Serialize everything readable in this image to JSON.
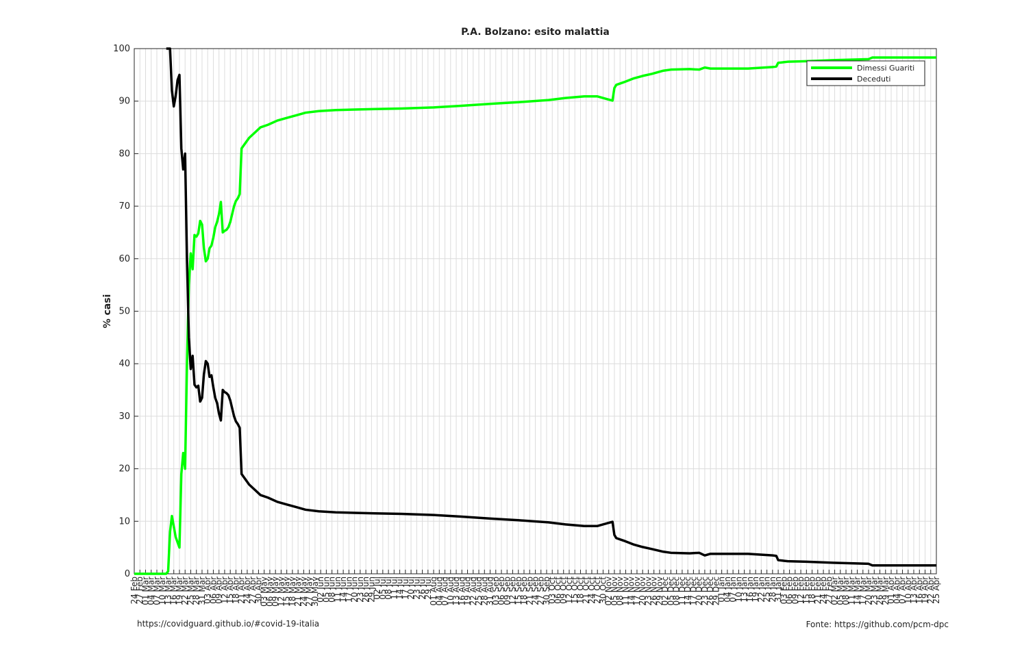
{
  "chart_data": {
    "type": "line",
    "title": "P.A. Bolzano: esito malattia",
    "xlabel": "",
    "ylabel": "% casi",
    "ylim": [
      0,
      100
    ],
    "yticks": [
      0,
      10,
      20,
      30,
      40,
      50,
      60,
      70,
      80,
      90,
      100
    ],
    "xlim": [
      "2020-02-24",
      "2021-04-25"
    ],
    "grid": true,
    "legend_position": "top-right",
    "xtick_labels": [
      "24 Feb",
      "27 Feb",
      "01 Mar",
      "04 Mar",
      "07 Mar",
      "10 Mar",
      "13 Mar",
      "16 Mar",
      "19 Mar",
      "22 Mar",
      "25 Mar",
      "28 Mar",
      "31 Mar",
      "03 Apr",
      "06 Apr",
      "09 Apr",
      "12 Apr",
      "15 Apr",
      "18 Apr",
      "21 Apr",
      "24 Apr",
      "27 Apr",
      "30 Apr",
      "03 May",
      "06 May",
      "09 May",
      "12 May",
      "15 May",
      "18 May",
      "21 May",
      "24 May",
      "27 May",
      "30 May",
      "02 Jun",
      "05 Jun",
      "08 Jun",
      "11 Jun",
      "14 Jun",
      "17 Jun",
      "20 Jun",
      "23 Jun",
      "26 Jun",
      "29 Jun",
      "02 Jul",
      "05 Jul",
      "08 Jul",
      "11 Jul",
      "14 Jul",
      "17 Jul",
      "20 Jul",
      "23 Jul",
      "26 Jul",
      "29 Jul",
      "01 Aug",
      "04 Aug",
      "07 Aug",
      "10 Aug",
      "13 Aug",
      "16 Aug",
      "19 Aug",
      "22 Aug",
      "25 Aug",
      "28 Aug",
      "31 Aug",
      "03 Sep",
      "06 Sep",
      "09 Sep",
      "12 Sep",
      "15 Sep",
      "18 Sep",
      "21 Sep",
      "24 Sep",
      "27 Sep",
      "30 Sep",
      "03 Oct",
      "06 Oct",
      "09 Oct",
      "12 Oct",
      "15 Oct",
      "18 Oct",
      "21 Oct",
      "24 Oct",
      "27 Oct",
      "30 Oct",
      "02 Nov",
      "05 Nov",
      "08 Nov",
      "11 Nov",
      "14 Nov",
      "17 Nov",
      "20 Nov",
      "23 Nov",
      "26 Nov",
      "29 Nov",
      "02 Dec",
      "05 Dec",
      "08 Dec",
      "11 Dec",
      "14 Dec",
      "17 Dec",
      "20 Dec",
      "23 Dec",
      "26 Dec",
      "29 Dec",
      "01 Jan",
      "04 Jan",
      "07 Jan",
      "10 Jan",
      "13 Jan",
      "16 Jan",
      "19 Jan",
      "22 Jan",
      "25 Jan",
      "28 Jan",
      "31 Jan",
      "03 Feb",
      "06 Feb",
      "09 Feb",
      "12 Feb",
      "15 Feb",
      "18 Feb",
      "21 Feb",
      "24 Feb",
      "27 Feb",
      "02 Mar",
      "05 Mar",
      "08 Mar",
      "11 Mar",
      "14 Mar",
      "17 Mar",
      "20 Mar",
      "23 Mar",
      "26 Mar",
      "29 Mar",
      "01 Apr",
      "04 Apr",
      "07 Apr",
      "10 Apr",
      "13 Apr",
      "16 Apr",
      "19 Apr",
      "22 Apr",
      "25 Apr"
    ],
    "series": [
      {
        "name": "Dimessi Guariti",
        "color": "#00ff00",
        "points": [
          [
            "2020-02-24",
            0
          ],
          [
            "2020-03-12",
            0
          ],
          [
            "2020-03-13",
            0.5
          ],
          [
            "2020-03-14",
            8
          ],
          [
            "2020-03-15",
            11
          ],
          [
            "2020-03-16",
            9
          ],
          [
            "2020-03-17",
            7
          ],
          [
            "2020-03-18",
            6
          ],
          [
            "2020-03-19",
            5
          ],
          [
            "2020-03-20",
            19
          ],
          [
            "2020-03-21",
            23
          ],
          [
            "2020-03-22",
            20
          ],
          [
            "2020-03-23",
            40
          ],
          [
            "2020-03-24",
            55
          ],
          [
            "2020-03-25",
            61
          ],
          [
            "2020-03-26",
            58
          ],
          [
            "2020-03-27",
            64.5
          ],
          [
            "2020-03-28",
            64.2
          ],
          [
            "2020-03-29",
            64.8
          ],
          [
            "2020-03-30",
            67.2
          ],
          [
            "2020-03-31",
            66.5
          ],
          [
            "2020-04-01",
            62
          ],
          [
            "2020-04-02",
            59.5
          ],
          [
            "2020-04-03",
            60
          ],
          [
            "2020-04-04",
            62
          ],
          [
            "2020-04-05",
            62.5
          ],
          [
            "2020-04-06",
            64
          ],
          [
            "2020-04-07",
            66
          ],
          [
            "2020-04-08",
            67
          ],
          [
            "2020-04-09",
            68.5
          ],
          [
            "2020-04-10",
            70.8
          ],
          [
            "2020-04-11",
            65
          ],
          [
            "2020-04-12",
            65.3
          ],
          [
            "2020-04-13",
            65.5
          ],
          [
            "2020-04-14",
            66
          ],
          [
            "2020-04-15",
            67
          ],
          [
            "2020-04-16",
            68.5
          ],
          [
            "2020-04-17",
            70
          ],
          [
            "2020-04-18",
            71
          ],
          [
            "2020-04-19",
            71.5
          ],
          [
            "2020-04-20",
            72.3
          ],
          [
            "2020-04-21",
            81
          ],
          [
            "2020-04-23",
            82
          ],
          [
            "2020-04-25",
            83
          ],
          [
            "2020-04-28",
            84
          ],
          [
            "2020-05-01",
            85
          ],
          [
            "2020-05-05",
            85.5
          ],
          [
            "2020-05-10",
            86.3
          ],
          [
            "2020-05-15",
            86.8
          ],
          [
            "2020-05-20",
            87.3
          ],
          [
            "2020-05-25",
            87.8
          ],
          [
            "2020-06-01",
            88.1
          ],
          [
            "2020-06-10",
            88.3
          ],
          [
            "2020-06-20",
            88.4
          ],
          [
            "2020-07-01",
            88.5
          ],
          [
            "2020-07-15",
            88.6
          ],
          [
            "2020-08-01",
            88.8
          ],
          [
            "2020-08-15",
            89.1
          ],
          [
            "2020-09-01",
            89.5
          ],
          [
            "2020-09-15",
            89.8
          ],
          [
            "2020-10-01",
            90.2
          ],
          [
            "2020-10-10",
            90.6
          ],
          [
            "2020-10-20",
            90.9
          ],
          [
            "2020-10-27",
            90.9
          ],
          [
            "2020-11-03",
            90.2
          ],
          [
            "2020-11-04",
            90.1
          ],
          [
            "2020-11-05",
            92.5
          ],
          [
            "2020-11-06",
            93.1
          ],
          [
            "2020-11-10",
            93.6
          ],
          [
            "2020-11-15",
            94.3
          ],
          [
            "2020-11-20",
            94.8
          ],
          [
            "2020-11-25",
            95.2
          ],
          [
            "2020-12-01",
            95.8
          ],
          [
            "2020-12-05",
            96
          ],
          [
            "2020-12-15",
            96.1
          ],
          [
            "2020-12-20",
            96
          ],
          [
            "2020-12-23",
            96.4
          ],
          [
            "2020-12-26",
            96.2
          ],
          [
            "2021-01-15",
            96.2
          ],
          [
            "2021-01-28",
            96.5
          ],
          [
            "2021-01-30",
            96.6
          ],
          [
            "2021-01-31",
            97.3
          ],
          [
            "2021-02-05",
            97.5
          ],
          [
            "2021-02-15",
            97.6
          ],
          [
            "2021-03-01",
            97.8
          ],
          [
            "2021-03-20",
            98
          ],
          [
            "2021-03-22",
            98.3
          ],
          [
            "2021-04-25",
            98.3
          ]
        ]
      },
      {
        "name": "Deceduti",
        "color": "#000000",
        "points": [
          [
            "2020-03-12",
            100
          ],
          [
            "2020-03-14",
            100
          ],
          [
            "2020-03-15",
            92
          ],
          [
            "2020-03-16",
            89
          ],
          [
            "2020-03-17",
            91
          ],
          [
            "2020-03-18",
            94
          ],
          [
            "2020-03-19",
            95
          ],
          [
            "2020-03-20",
            81
          ],
          [
            "2020-03-21",
            77
          ],
          [
            "2020-03-22",
            80
          ],
          [
            "2020-03-23",
            60
          ],
          [
            "2020-03-24",
            45
          ],
          [
            "2020-03-25",
            39
          ],
          [
            "2020-03-26",
            41.5
          ],
          [
            "2020-03-27",
            36
          ],
          [
            "2020-03-28",
            35.5
          ],
          [
            "2020-03-29",
            35.8
          ],
          [
            "2020-03-30",
            32.8
          ],
          [
            "2020-03-31",
            33.5
          ],
          [
            "2020-04-01",
            38
          ],
          [
            "2020-04-02",
            40.5
          ],
          [
            "2020-04-03",
            40
          ],
          [
            "2020-04-04",
            37.5
          ],
          [
            "2020-04-05",
            37.8
          ],
          [
            "2020-04-06",
            35.5
          ],
          [
            "2020-04-07",
            33.5
          ],
          [
            "2020-04-08",
            32.5
          ],
          [
            "2020-04-09",
            30.5
          ],
          [
            "2020-04-10",
            29.2
          ],
          [
            "2020-04-11",
            35
          ],
          [
            "2020-04-12",
            34.6
          ],
          [
            "2020-04-13",
            34.4
          ],
          [
            "2020-04-14",
            34
          ],
          [
            "2020-04-15",
            33
          ],
          [
            "2020-04-16",
            31.5
          ],
          [
            "2020-04-17",
            30
          ],
          [
            "2020-04-18",
            29
          ],
          [
            "2020-04-19",
            28.5
          ],
          [
            "2020-04-20",
            27.8
          ],
          [
            "2020-04-21",
            19
          ],
          [
            "2020-04-23",
            18
          ],
          [
            "2020-04-25",
            17
          ],
          [
            "2020-04-28",
            16
          ],
          [
            "2020-05-01",
            15
          ],
          [
            "2020-05-05",
            14.5
          ],
          [
            "2020-05-10",
            13.7
          ],
          [
            "2020-05-15",
            13.2
          ],
          [
            "2020-05-20",
            12.7
          ],
          [
            "2020-05-25",
            12.2
          ],
          [
            "2020-06-01",
            11.9
          ],
          [
            "2020-06-10",
            11.7
          ],
          [
            "2020-06-20",
            11.6
          ],
          [
            "2020-07-01",
            11.5
          ],
          [
            "2020-07-15",
            11.4
          ],
          [
            "2020-08-01",
            11.2
          ],
          [
            "2020-08-15",
            10.9
          ],
          [
            "2020-09-01",
            10.5
          ],
          [
            "2020-09-15",
            10.2
          ],
          [
            "2020-10-01",
            9.8
          ],
          [
            "2020-10-10",
            9.4
          ],
          [
            "2020-10-20",
            9.1
          ],
          [
            "2020-10-27",
            9.1
          ],
          [
            "2020-11-03",
            9.8
          ],
          [
            "2020-11-04",
            9.9
          ],
          [
            "2020-11-05",
            7.4
          ],
          [
            "2020-11-06",
            6.8
          ],
          [
            "2020-11-10",
            6.3
          ],
          [
            "2020-11-15",
            5.6
          ],
          [
            "2020-11-20",
            5.1
          ],
          [
            "2020-11-25",
            4.7
          ],
          [
            "2020-12-01",
            4.2
          ],
          [
            "2020-12-05",
            4
          ],
          [
            "2020-12-15",
            3.9
          ],
          [
            "2020-12-20",
            4
          ],
          [
            "2020-12-23",
            3.5
          ],
          [
            "2020-12-26",
            3.8
          ],
          [
            "2021-01-15",
            3.8
          ],
          [
            "2021-01-28",
            3.5
          ],
          [
            "2021-01-30",
            3.4
          ],
          [
            "2021-01-31",
            2.6
          ],
          [
            "2021-02-05",
            2.4
          ],
          [
            "2021-02-15",
            2.3
          ],
          [
            "2021-03-01",
            2.1
          ],
          [
            "2021-03-20",
            1.9
          ],
          [
            "2021-03-22",
            1.6
          ],
          [
            "2021-04-25",
            1.6
          ]
        ]
      }
    ]
  },
  "footer": {
    "source_url": "https://covidguard.github.io/#covid-19-italia",
    "credit": "Fonte: https://github.com/pcm-dpc"
  }
}
